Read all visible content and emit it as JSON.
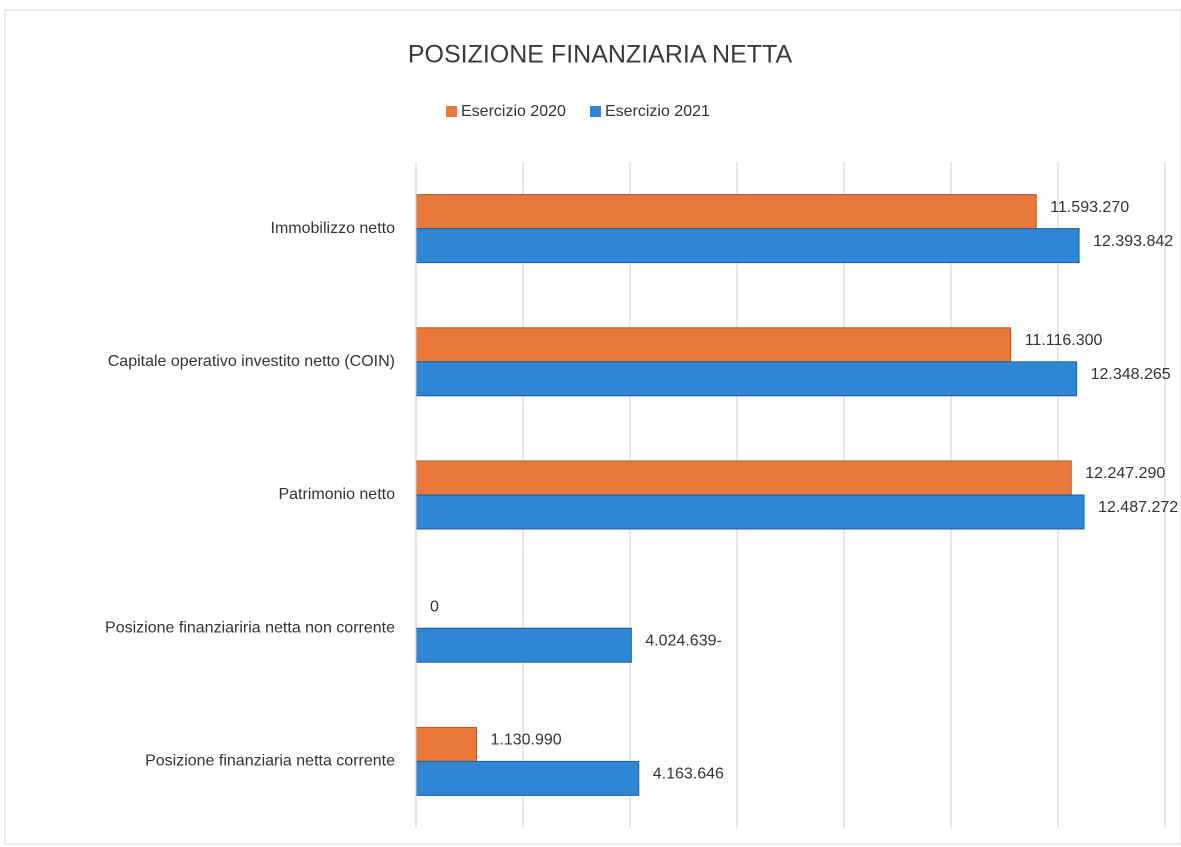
{
  "chart_data": {
    "type": "hbar",
    "title": "POSIZIONE FINANZIARIA NETTA",
    "categories": [
      "Immobilizzo netto",
      "Capitale operativo investito netto (COIN)",
      "Patrimonio netto",
      "Posizione finanziariria netta non corrente",
      "Posizione finanziaria netta corrente"
    ],
    "series": [
      {
        "name": "Esercizio 2020",
        "color": "#e8793a",
        "values": [
          11593270,
          11116300,
          12247290,
          0,
          1130990
        ],
        "value_labels": [
          "11.593.270",
          "11.116.300",
          "12.247.290",
          "0",
          "1.130.990"
        ]
      },
      {
        "name": "Esercizio 2021",
        "color": "#2f86d4",
        "values": [
          12393842,
          12348265,
          12487272,
          4024639,
          4163646
        ],
        "value_labels": [
          "12.393.842",
          "12.348.265",
          "12.487.272",
          "4.024.639-",
          "4.163.646"
        ]
      }
    ],
    "xlim": [
      0,
      14000000
    ],
    "xticks": [
      0,
      2000000,
      4000000,
      6000000,
      8000000,
      10000000,
      12000000,
      14000000
    ],
    "grid": true,
    "legend": "top"
  }
}
